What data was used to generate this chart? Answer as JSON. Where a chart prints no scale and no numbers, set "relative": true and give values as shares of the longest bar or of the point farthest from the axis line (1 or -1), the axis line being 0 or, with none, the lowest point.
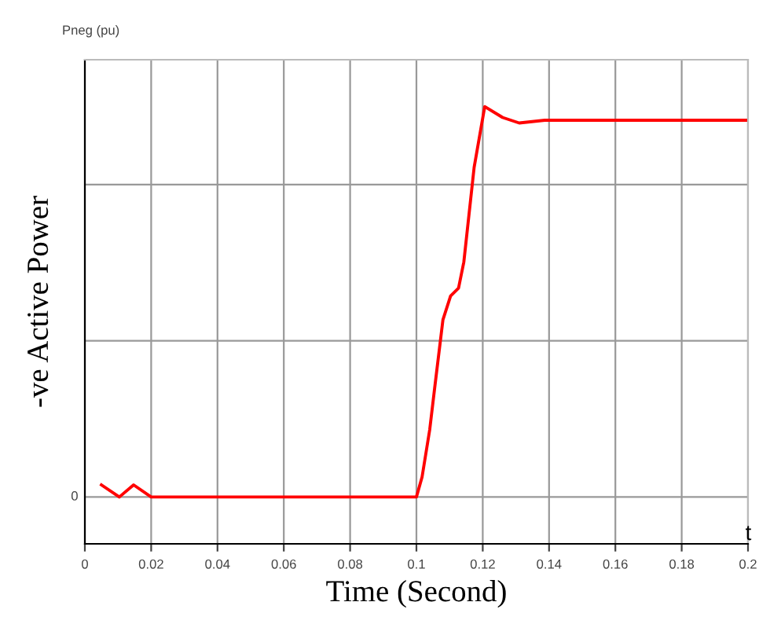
{
  "chart_data": {
    "type": "line",
    "relative": true,
    "ylabel": "-ve Active Power",
    "xlabel": "Time (Second)",
    "annotations": [
      "Pneg (pu)",
      "t",
      "0"
    ],
    "x": [
      0.005,
      0.0104,
      0.0147,
      0.02,
      0.1,
      0.1017,
      0.104,
      0.1055,
      0.108,
      0.1103,
      0.1127,
      0.1143,
      0.1174,
      0.1206,
      0.126,
      0.131,
      0.1387,
      0.2
    ],
    "series": [
      {
        "color": "#ff0000",
        "values": [
          0.031,
          0,
          0.031,
          0,
          0,
          0.051,
          0.172,
          0.279,
          0.454,
          0.515,
          0.535,
          0.602,
          0.844,
          1.0,
          0.972,
          0.958,
          0.965,
          0.965
        ]
      }
    ],
    "xlim": [
      0,
      0.2
    ],
    "xticks": [
      0,
      0.02,
      0.04,
      0.06,
      0.08,
      0.1,
      0.12,
      0.14,
      0.16,
      0.18,
      0.2
    ],
    "grid": true,
    "marker": "none",
    "line_style": "solid"
  }
}
